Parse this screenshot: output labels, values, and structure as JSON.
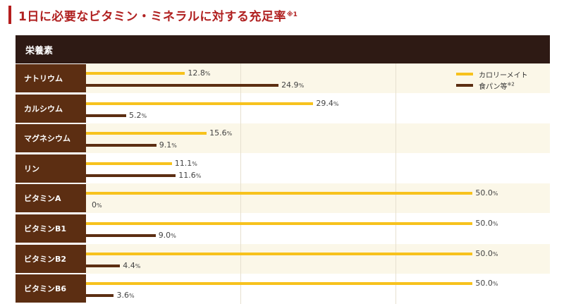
{
  "title": {
    "text": "1日に必要なビタミン・ミネラルに対する充足率",
    "note": "※1"
  },
  "header": {
    "label": "栄養素"
  },
  "legend": [
    {
      "label": "カロリーメイト",
      "note": ""
    },
    {
      "label": "食パン等",
      "note": "※2"
    }
  ],
  "colors": {
    "series_0": "#f7c21d",
    "series_1": "#5c2e12",
    "label_bg": "#5c2e12",
    "header_bg": "#2e1a14",
    "title_accent": "#b51e1e"
  },
  "chart_data": {
    "type": "bar",
    "orientation": "horizontal",
    "categories": [
      "ナトリウム",
      "カルシウム",
      "マグネシウム",
      "リン",
      "ビタミンA",
      "ビタミンB1",
      "ビタミンB2",
      "ビタミンB6"
    ],
    "series": [
      {
        "name": "カロリーメイト",
        "values": [
          12.8,
          29.4,
          15.6,
          11.1,
          50.0,
          50.0,
          50.0,
          50.0
        ]
      },
      {
        "name": "食パン等",
        "values": [
          24.9,
          5.2,
          9.1,
          11.6,
          0,
          9.0,
          4.4,
          3.6
        ]
      }
    ],
    "value_labels": [
      [
        "12.8",
        "29.4",
        "15.6",
        "11.1",
        "50.0",
        "50.0",
        "50.0",
        "50.0"
      ],
      [
        "24.9",
        "5.2",
        "9.1",
        "11.6",
        "0",
        "9.0",
        "4.4",
        "3.6"
      ]
    ],
    "unit": "%",
    "xlim": [
      0,
      60
    ],
    "grid": true,
    "legend_position": "top-right"
  }
}
